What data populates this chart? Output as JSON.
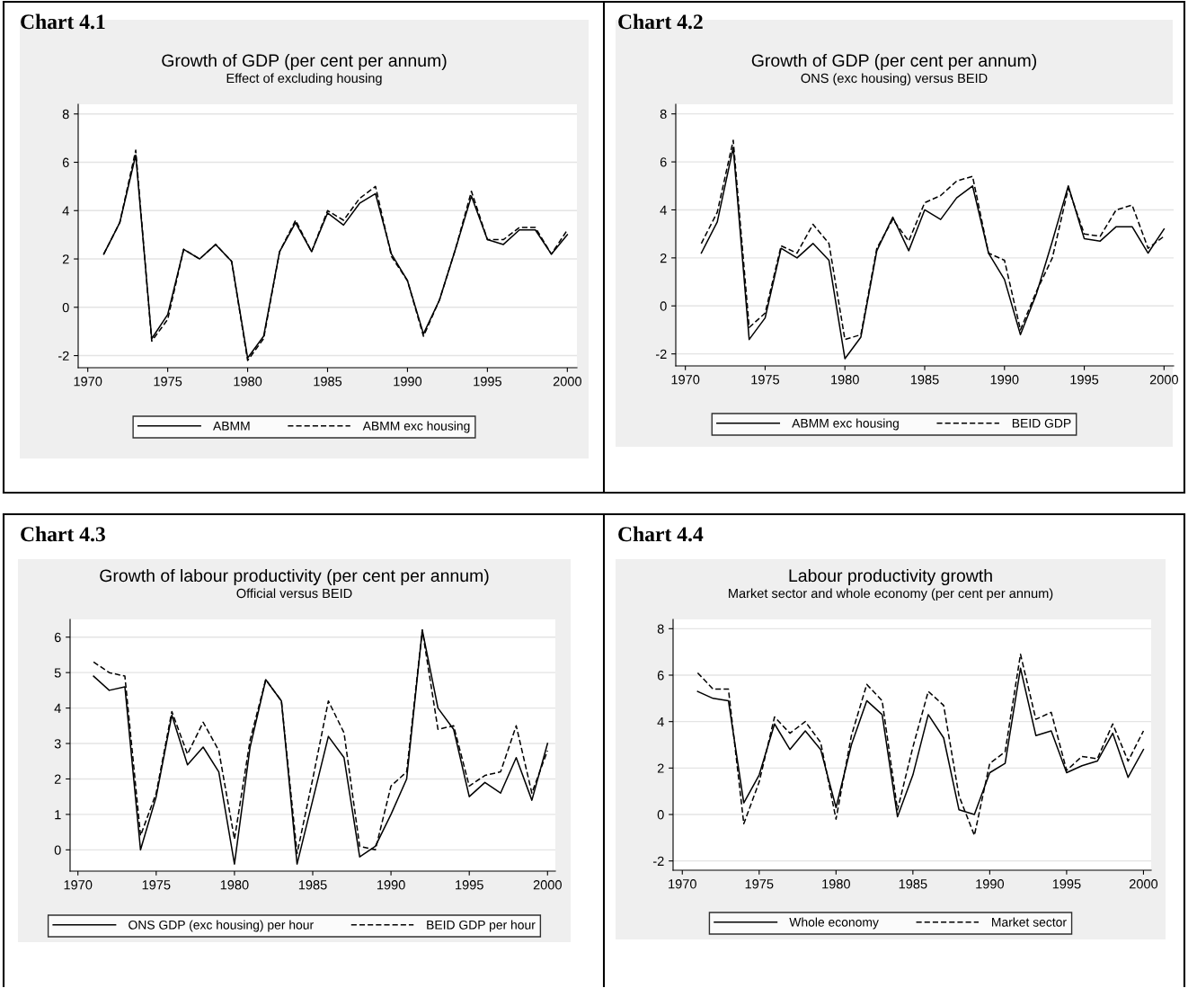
{
  "chart_data": [
    {
      "type": "line",
      "annotations": [
        "Chart 4.1"
      ],
      "title": "Growth of GDP (per cent per annum)",
      "subtitle": "Effect of excluding housing",
      "x": [
        1971,
        1972,
        1973,
        1974,
        1975,
        1976,
        1977,
        1978,
        1979,
        1980,
        1981,
        1982,
        1983,
        1984,
        1985,
        1986,
        1987,
        1988,
        1989,
        1990,
        1991,
        1992,
        1993,
        1994,
        1995,
        1996,
        1997,
        1998,
        1999,
        2000
      ],
      "xlim": [
        1969.4,
        2000.6
      ],
      "xticks": [
        1970,
        1975,
        1980,
        1985,
        1990,
        1995,
        2000
      ],
      "ylim": [
        -2.5,
        8.4
      ],
      "yticks": [
        -2,
        0,
        2,
        4,
        6,
        8
      ],
      "grid": "y",
      "legend": "bottom",
      "series": [
        {
          "name": "ABMM",
          "color": "#000000",
          "line_style": "solid",
          "values": [
            2.2,
            3.5,
            6.3,
            -1.3,
            -0.3,
            2.4,
            2.0,
            2.6,
            1.9,
            -2.1,
            -1.2,
            2.3,
            3.5,
            2.3,
            3.9,
            3.4,
            4.3,
            4.7,
            2.2,
            1.1,
            -1.1,
            0.3,
            2.4,
            4.6,
            2.8,
            2.6,
            3.2,
            3.2,
            2.2,
            3.0
          ]
        },
        {
          "name": "ABMM exc housing",
          "color": "#000000",
          "line_style": "dashed",
          "values": [
            2.2,
            3.5,
            6.5,
            -1.4,
            -0.5,
            2.4,
            2.0,
            2.6,
            1.9,
            -2.2,
            -1.3,
            2.3,
            3.6,
            2.3,
            4.0,
            3.6,
            4.5,
            5.0,
            2.1,
            1.1,
            -1.2,
            0.3,
            2.4,
            4.8,
            2.8,
            2.8,
            3.3,
            3.3,
            2.2,
            3.2
          ]
        }
      ]
    },
    {
      "type": "line",
      "annotations": [
        "Chart 4.2"
      ],
      "title": "Growth of GDP (per cent per annum)",
      "subtitle": "ONS (exc housing) versus BEID",
      "x": [
        1971,
        1972,
        1973,
        1974,
        1975,
        1976,
        1977,
        1978,
        1979,
        1980,
        1981,
        1982,
        1983,
        1984,
        1985,
        1986,
        1987,
        1988,
        1989,
        1990,
        1991,
        1992,
        1993,
        1994,
        1995,
        1996,
        1997,
        1998,
        1999,
        2000
      ],
      "xlim": [
        1969.4,
        2000.6
      ],
      "xticks": [
        1970,
        1975,
        1980,
        1985,
        1990,
        1995,
        2000
      ],
      "ylim": [
        -2.5,
        8.4
      ],
      "yticks": [
        -2,
        0,
        2,
        4,
        6,
        8
      ],
      "grid": "y",
      "legend": "bottom",
      "series": [
        {
          "name": "ABMM exc housing",
          "color": "#000000",
          "line_style": "solid",
          "values": [
            2.2,
            3.5,
            6.6,
            -1.4,
            -0.5,
            2.4,
            2.0,
            2.6,
            1.9,
            -2.2,
            -1.3,
            2.3,
            3.7,
            2.3,
            4.0,
            3.6,
            4.5,
            5.0,
            2.2,
            1.1,
            -1.2,
            0.5,
            2.7,
            5.0,
            2.8,
            2.7,
            3.3,
            3.3,
            2.2,
            3.2
          ]
        },
        {
          "name": "BEID GDP",
          "color": "#000000",
          "line_style": "dashed",
          "values": [
            2.6,
            3.9,
            6.9,
            -0.9,
            -0.3,
            2.5,
            2.2,
            3.4,
            2.6,
            -1.4,
            -1.2,
            2.4,
            3.6,
            2.7,
            4.3,
            4.6,
            5.2,
            5.4,
            2.2,
            1.9,
            -1.0,
            0.6,
            2.0,
            4.9,
            3.0,
            2.9,
            4.0,
            4.2,
            2.4,
            2.9
          ]
        }
      ]
    },
    {
      "type": "line",
      "annotations": [
        "Chart 4.3"
      ],
      "title": "Growth of labour productivity (per cent per annum)",
      "subtitle": "Official versus BEID",
      "x": [
        1971,
        1972,
        1973,
        1974,
        1975,
        1976,
        1977,
        1978,
        1979,
        1980,
        1981,
        1982,
        1983,
        1984,
        1985,
        1986,
        1987,
        1988,
        1989,
        1990,
        1991,
        1992,
        1993,
        1994,
        1995,
        1996,
        1997,
        1998,
        1999,
        2000
      ],
      "xlim": [
        1969.5,
        2000.5
      ],
      "xticks": [
        1970,
        1975,
        1980,
        1985,
        1990,
        1995,
        2000
      ],
      "ylim": [
        -0.6,
        6.5
      ],
      "yticks": [
        0,
        1,
        2,
        3,
        4,
        5,
        6
      ],
      "grid": "y",
      "legend": "bottom",
      "series": [
        {
          "name": "ONS GDP (exc housing) per hour",
          "color": "#000000",
          "line_style": "solid",
          "values": [
            4.9,
            4.5,
            4.6,
            0.0,
            1.5,
            3.8,
            2.4,
            2.9,
            2.2,
            -0.4,
            2.9,
            4.8,
            4.2,
            -0.4,
            1.4,
            3.2,
            2.6,
            -0.2,
            0.1,
            1.0,
            2.0,
            6.2,
            4.0,
            3.4,
            1.5,
            1.9,
            1.6,
            2.6,
            1.4,
            3.0
          ]
        },
        {
          "name": "BEID GDP per hour",
          "color": "#000000",
          "line_style": "dashed",
          "values": [
            5.3,
            5.0,
            4.9,
            0.4,
            1.6,
            3.9,
            2.7,
            3.6,
            2.8,
            0.3,
            3.1,
            4.8,
            4.2,
            -0.1,
            2.0,
            4.2,
            3.3,
            0.1,
            0.0,
            1.8,
            2.2,
            6.2,
            3.4,
            3.5,
            1.8,
            2.1,
            2.2,
            3.5,
            1.6,
            2.8
          ]
        }
      ]
    },
    {
      "type": "line",
      "annotations": [
        "Chart 4.4"
      ],
      "title": "Labour productivity growth",
      "subtitle": "Market sector and whole economy (per cent per annum)",
      "x": [
        1971,
        1972,
        1973,
        1974,
        1975,
        1976,
        1977,
        1978,
        1979,
        1980,
        1981,
        1982,
        1983,
        1984,
        1985,
        1986,
        1987,
        1988,
        1989,
        1990,
        1991,
        1992,
        1993,
        1994,
        1995,
        1996,
        1997,
        1998,
        1999,
        2000
      ],
      "xlim": [
        1969.4,
        2000.5
      ],
      "xticks": [
        1970,
        1975,
        1980,
        1985,
        1990,
        1995,
        2000
      ],
      "ylim": [
        -2.4,
        8.4
      ],
      "yticks": [
        -2,
        0,
        2,
        4,
        6,
        8
      ],
      "grid": "y",
      "legend": "bottom",
      "series": [
        {
          "name": "Whole economy",
          "color": "#000000",
          "line_style": "solid",
          "values": [
            5.3,
            5.0,
            4.9,
            0.5,
            1.7,
            3.9,
            2.8,
            3.6,
            2.8,
            0.3,
            3.0,
            4.9,
            4.3,
            -0.1,
            1.7,
            4.3,
            3.3,
            0.2,
            0.0,
            1.8,
            2.2,
            6.3,
            3.4,
            3.6,
            1.8,
            2.1,
            2.3,
            3.5,
            1.6,
            2.8
          ]
        },
        {
          "name": "Market sector",
          "color": "#000000",
          "line_style": "dashed",
          "values": [
            6.1,
            5.4,
            5.4,
            -0.4,
            1.4,
            4.2,
            3.5,
            4.0,
            3.1,
            -0.2,
            3.4,
            5.6,
            4.9,
            0.2,
            2.9,
            5.3,
            4.7,
            0.8,
            -0.9,
            2.2,
            2.7,
            6.9,
            4.1,
            4.4,
            1.9,
            2.5,
            2.4,
            3.9,
            2.3,
            3.6
          ]
        }
      ]
    }
  ]
}
